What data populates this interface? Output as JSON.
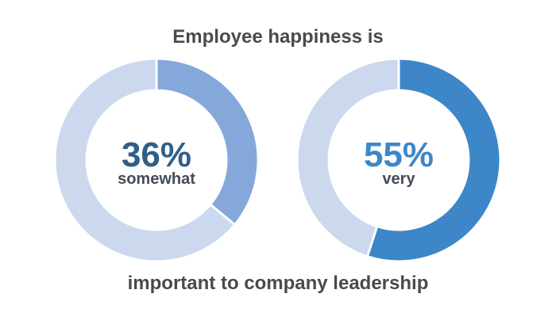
{
  "header": {
    "title": "Employee happiness is"
  },
  "footer": {
    "caption": "important to company leadership"
  },
  "chart_data": [
    {
      "type": "pie",
      "value": 36,
      "value_label": "36%",
      "category_label": "somewhat",
      "colors": {
        "filled": "#84a8da",
        "remainder": "#cbd8ee",
        "value_text": "#2f5f87"
      }
    },
    {
      "type": "pie",
      "value": 55,
      "value_label": "55%",
      "category_label": "very",
      "colors": {
        "filled": "#3d87c8",
        "remainder": "#cbd8ee",
        "value_text": "#3d87c8"
      }
    }
  ]
}
